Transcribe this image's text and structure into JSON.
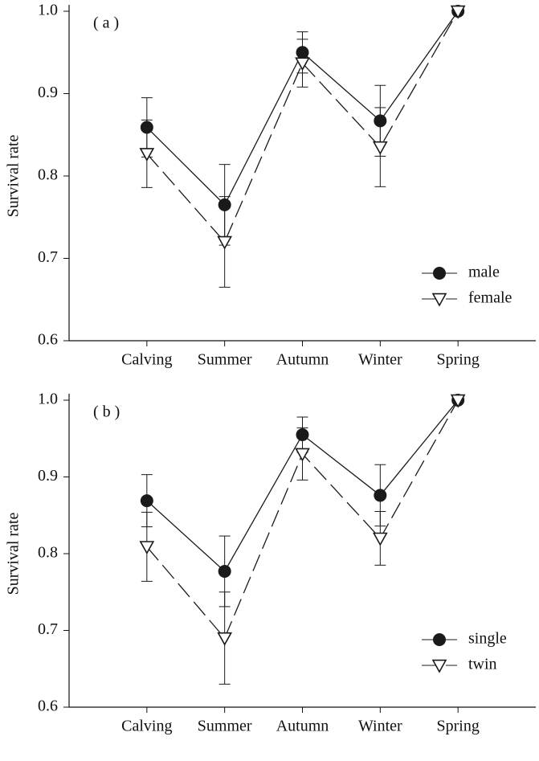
{
  "chart_data": [
    {
      "type": "line",
      "annotation": "( a )",
      "ylabel": "Survival rate",
      "categories": [
        "Calving",
        "Summer",
        "Autumn",
        "Winter",
        "Spring"
      ],
      "ylim": [
        0.6,
        1.0
      ],
      "yticks": [
        0.6,
        0.7,
        0.8,
        0.9,
        {
          "value": 1.0,
          "label": "1.0"
        }
      ],
      "legend": "lower right",
      "series": [
        {
          "name": "male",
          "color": "#1a1a1a",
          "marker": "circle",
          "dashed": false,
          "values": [
            0.859,
            0.765,
            0.95,
            0.867,
            1.0
          ],
          "errors": [
            0.036,
            0.049,
            0.025,
            0.043,
            0
          ]
        },
        {
          "name": "female",
          "color": "#1a1a1a",
          "marker": "triangle-down",
          "dashed": true,
          "values": [
            0.827,
            0.72,
            0.937,
            0.835,
            1.0
          ],
          "errors": [
            0.041,
            0.055,
            0.029,
            0.048,
            0
          ]
        }
      ]
    },
    {
      "type": "line",
      "annotation": "( b )",
      "ylabel": "Survival rate",
      "categories": [
        "Calving",
        "Summer",
        "Autumn",
        "Winter",
        "Spring"
      ],
      "ylim": [
        0.6,
        1.0
      ],
      "yticks": [
        0.6,
        0.7,
        0.8,
        0.9,
        {
          "value": 1.0,
          "label": "1.0"
        }
      ],
      "legend": "lower right",
      "series": [
        {
          "name": "single",
          "color": "#1a1a1a",
          "marker": "circle",
          "dashed": false,
          "values": [
            0.869,
            0.777,
            0.955,
            0.876,
            1.0
          ],
          "errors": [
            0.034,
            0.046,
            0.023,
            0.04,
            0
          ]
        },
        {
          "name": "twin",
          "color": "#1a1a1a",
          "marker": "triangle-down",
          "dashed": true,
          "values": [
            0.809,
            0.69,
            0.93,
            0.82,
            1.0
          ],
          "errors": [
            0.045,
            0.06,
            0.034,
            0.035,
            0
          ]
        }
      ]
    }
  ]
}
